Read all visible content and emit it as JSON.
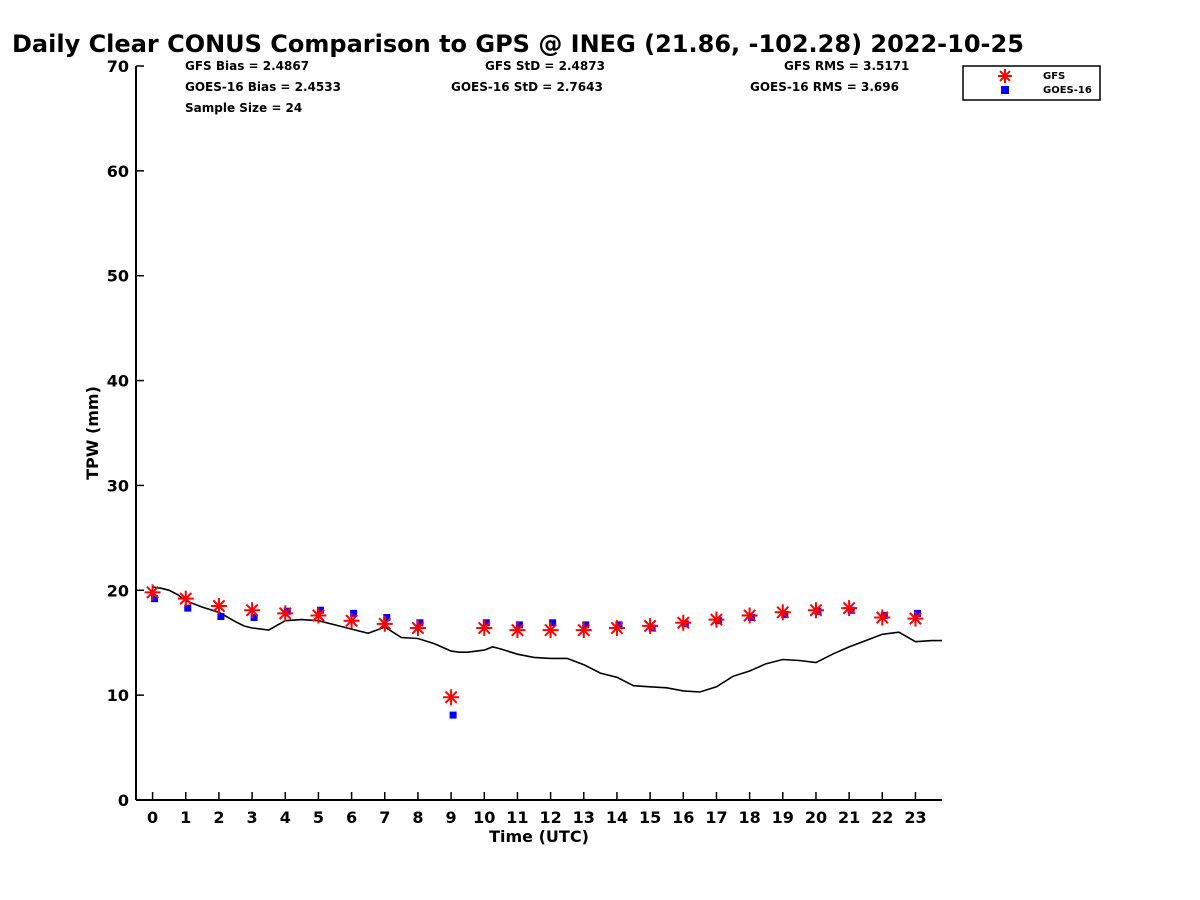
{
  "title": "Daily Clear CONUS Comparison to GPS @ INEG (21.86, -102.28) 2022-10-25",
  "stats": {
    "gfs_bias": "GFS Bias = 2.4867",
    "goes_bias": "GOES-16 Bias = 2.4533",
    "sample_size": "Sample Size = 24",
    "gfs_std": "GFS StD = 2.4873",
    "goes_std": "GOES-16 StD = 2.7643",
    "gfs_rms": "GFS RMS = 3.5171",
    "goes_rms": "GOES-16 RMS = 3.696"
  },
  "colors": {
    "gfs": "#ff0000",
    "goes": "#0000ff",
    "gps": "#000000"
  },
  "chart_data": {
    "type": "scatter",
    "xlabel": "Time (UTC)",
    "ylabel": "TPW (mm)",
    "xlim": [
      -0.5,
      23.8
    ],
    "ylim": [
      0,
      70
    ],
    "xticks": [
      0,
      1,
      2,
      3,
      4,
      5,
      6,
      7,
      8,
      9,
      10,
      11,
      12,
      13,
      14,
      15,
      16,
      17,
      18,
      19,
      20,
      21,
      22,
      23
    ],
    "yticks": [
      0,
      10,
      20,
      30,
      40,
      50,
      60,
      70
    ],
    "legend": {
      "position": "top-right",
      "entries": [
        "GFS",
        "GOES-16"
      ]
    },
    "series": [
      {
        "name": "GFS",
        "marker": "asterisk",
        "x": [
          0,
          1,
          2,
          3,
          4,
          5,
          6,
          7,
          8,
          9,
          10,
          11,
          12,
          13,
          14,
          15,
          16,
          17,
          18,
          19,
          20,
          21,
          22,
          23
        ],
        "y": [
          19.8,
          19.2,
          18.5,
          18.1,
          17.8,
          17.6,
          17.1,
          16.8,
          16.4,
          9.8,
          16.4,
          16.2,
          16.2,
          16.2,
          16.4,
          16.6,
          16.9,
          17.2,
          17.6,
          17.9,
          18.1,
          18.3,
          17.4,
          17.3
        ]
      },
      {
        "name": "GOES-16",
        "marker": "square",
        "x": [
          0,
          1,
          2,
          3,
          4,
          5,
          6,
          7,
          8,
          9,
          10,
          11,
          12,
          13,
          14,
          15,
          16,
          17,
          18,
          19,
          20,
          21,
          22,
          23
        ],
        "y": [
          19.2,
          18.3,
          17.5,
          17.4,
          18.0,
          18.1,
          17.8,
          17.4,
          16.9,
          8.1,
          16.9,
          16.7,
          16.9,
          16.7,
          16.7,
          16.4,
          16.8,
          17.1,
          17.4,
          17.7,
          18.0,
          18.1,
          17.6,
          17.8
        ]
      },
      {
        "name": "GPS",
        "marker": "line",
        "x": [
          0,
          0.25,
          0.5,
          0.75,
          1,
          1.5,
          2,
          2.5,
          2.75,
          3,
          3.5,
          4,
          4.5,
          5,
          5.5,
          6,
          6.5,
          7,
          7.5,
          8,
          8.5,
          9,
          9.25,
          9.5,
          10,
          10.25,
          10.5,
          11,
          11.5,
          12,
          12.5,
          13,
          13.5,
          14,
          14.5,
          15,
          15.5,
          16,
          16.5,
          17,
          17.5,
          18,
          18.5,
          19,
          19.5,
          20,
          20.5,
          21,
          21.5,
          22,
          22.5,
          23,
          23.5,
          23.8
        ],
        "y": [
          20.3,
          20.2,
          20.0,
          19.6,
          19.0,
          18.4,
          17.9,
          17.0,
          16.6,
          16.4,
          16.2,
          17.1,
          17.2,
          17.1,
          16.7,
          16.3,
          15.9,
          16.5,
          15.5,
          15.4,
          14.9,
          14.2,
          14.1,
          14.1,
          14.3,
          14.6,
          14.4,
          13.9,
          13.6,
          13.5,
          13.5,
          12.9,
          12.1,
          11.7,
          10.9,
          10.8,
          10.7,
          10.4,
          10.3,
          10.8,
          11.8,
          12.3,
          13.0,
          13.4,
          13.3,
          13.1,
          13.9,
          14.6,
          15.2,
          15.8,
          16.0,
          15.1,
          15.2,
          15.2
        ]
      }
    ]
  }
}
